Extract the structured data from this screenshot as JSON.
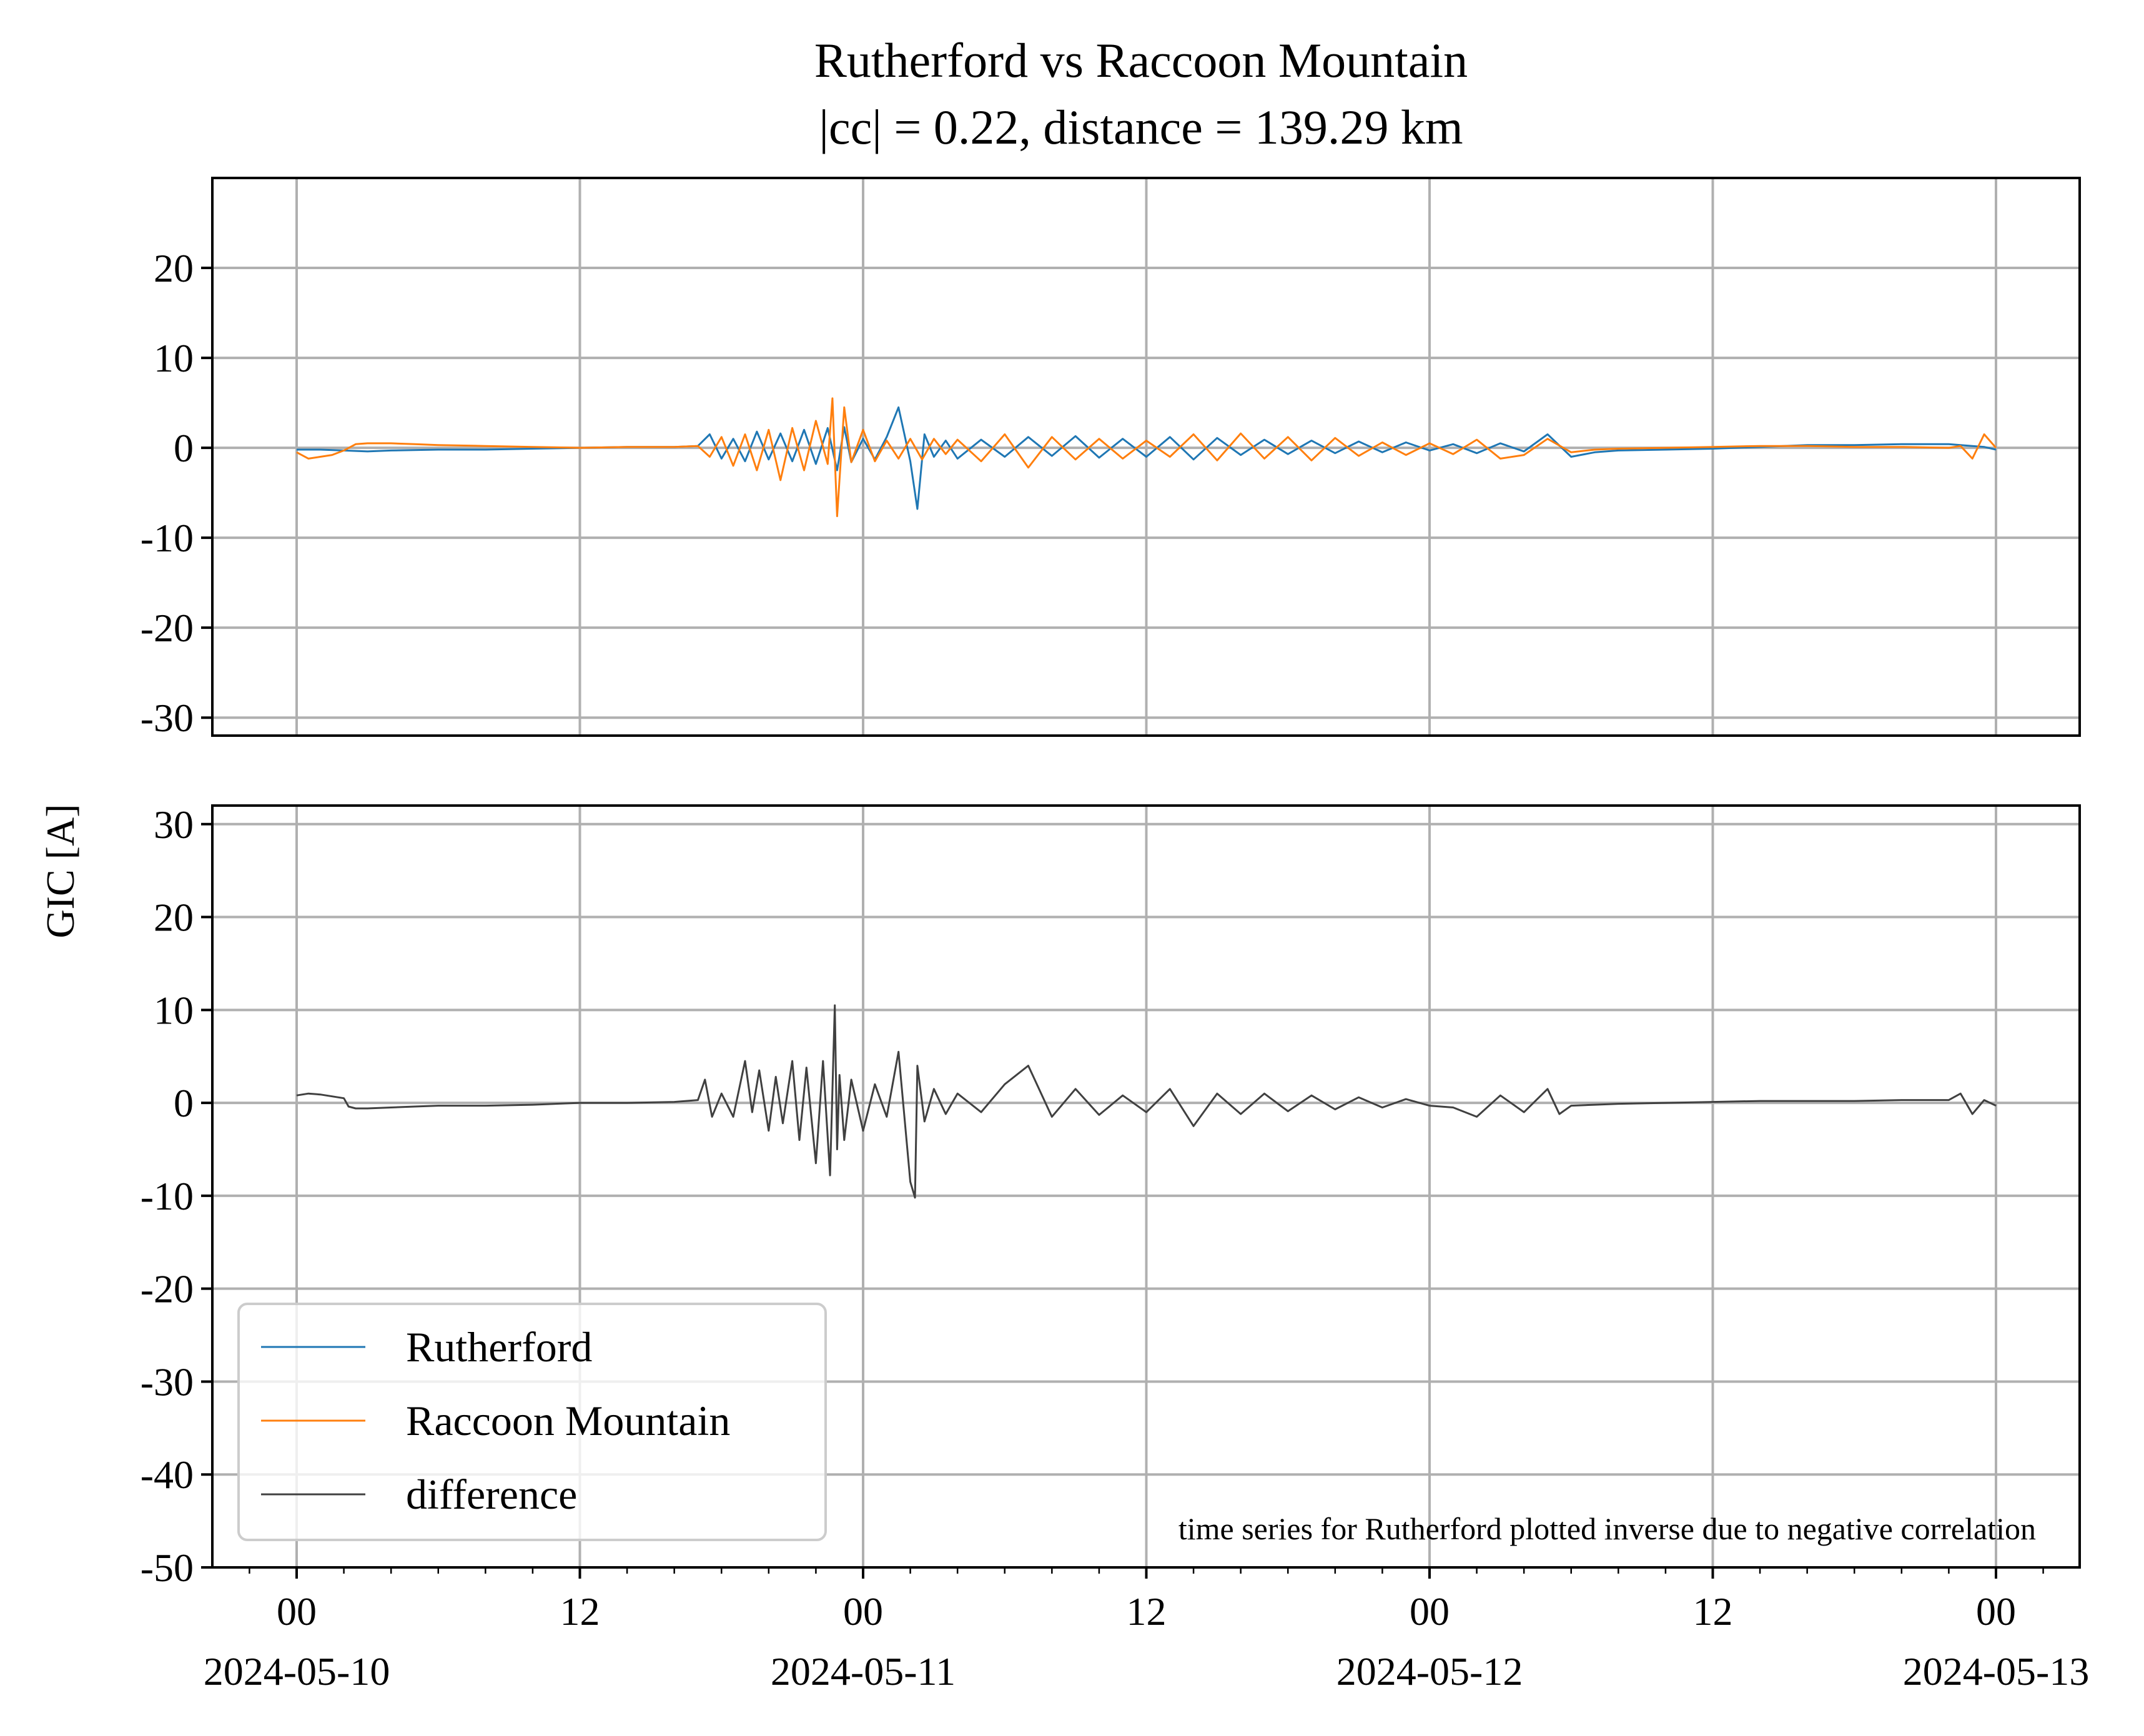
{
  "chart_data": {
    "type": "line",
    "title": "Rutherford vs Raccoon Mountain",
    "subtitle": "|cc| = 0.22, distance = 139.29 km",
    "ylabel": "GIC [A]",
    "annotation": "time series for Rutherford plotted inverse due to negative correlation",
    "colors": {
      "Rutherford": "#1f77b4",
      "Raccoon Mountain": "#ff7f0e",
      "difference": "#404040"
    },
    "legend": {
      "position": "lower-left",
      "entries": [
        "Rutherford",
        "Raccoon Mountain",
        "difference"
      ]
    },
    "grid": true,
    "x_ticks": [
      {
        "hours": 0,
        "label1": "00",
        "label2": "2024-05-10"
      },
      {
        "hours": 12,
        "label1": "12",
        "label2": ""
      },
      {
        "hours": 24,
        "label1": "00",
        "label2": "2024-05-11"
      },
      {
        "hours": 36,
        "label1": "12",
        "label2": ""
      },
      {
        "hours": 48,
        "label1": "00",
        "label2": "2024-05-12"
      },
      {
        "hours": 60,
        "label1": "12",
        "label2": ""
      },
      {
        "hours": 72,
        "label1": "00",
        "label2": "2024-05-13"
      }
    ],
    "panels": [
      {
        "name": "top",
        "ylim": [
          -32,
          30
        ],
        "yticks": [
          20,
          10,
          0,
          -10,
          -20,
          -30
        ],
        "series": [
          {
            "name": "Rutherford",
            "x_hours": [
              0,
              1,
              2,
              3,
              4,
              6,
              8,
              10,
              12,
              14,
              16,
              17,
              17.5,
              18,
              18.5,
              19,
              19.5,
              20,
              20.5,
              21,
              21.5,
              22,
              22.5,
              22.9,
              23.2,
              23.5,
              24,
              24.5,
              25,
              25.5,
              26,
              26.3,
              26.6,
              27,
              27.5,
              28,
              29,
              30,
              31,
              32,
              33,
              34,
              35,
              36,
              37,
              38,
              39,
              40,
              41,
              42,
              43,
              44,
              45,
              46,
              47,
              48,
              49,
              50,
              51,
              52,
              53,
              54,
              55,
              56,
              58,
              60,
              62,
              64,
              66,
              68,
              70,
              71,
              71.5,
              72
            ],
            "values": [
              -0.2,
              -0.2,
              -0.3,
              -0.4,
              -0.3,
              -0.2,
              -0.2,
              -0.1,
              0,
              0.1,
              0.1,
              0.2,
              1.5,
              -1.2,
              1,
              -1.5,
              1.8,
              -1.3,
              1.6,
              -1.5,
              2,
              -1.8,
              2.2,
              -2.5,
              2.3,
              -1.6,
              1,
              -1.3,
              1.2,
              4.5,
              -1.5,
              -6.8,
              1.5,
              -1,
              0.8,
              -1.2,
              0.9,
              -1,
              1.2,
              -0.9,
              1.3,
              -1.1,
              1,
              -1,
              1.2,
              -1.3,
              1.1,
              -0.8,
              0.9,
              -0.7,
              0.8,
              -0.6,
              0.7,
              -0.5,
              0.6,
              -0.3,
              0.4,
              -0.6,
              0.5,
              -0.4,
              1.5,
              -1,
              -0.5,
              -0.3,
              -0.2,
              -0.1,
              0.1,
              0.3,
              0.3,
              0.4,
              0.4,
              0.2,
              0.1,
              -0.2
            ]
          },
          {
            "name": "Raccoon Mountain",
            "x_hours": [
              0,
              0.5,
              1,
              1.5,
              2,
              2.5,
              3,
              4,
              5,
              6,
              8,
              10,
              12,
              14,
              16,
              17,
              17.5,
              18,
              18.5,
              19,
              19.5,
              20,
              20.5,
              21,
              21.5,
              22,
              22.5,
              22.7,
              22.9,
              23.2,
              23.5,
              24,
              24.5,
              25,
              25.5,
              26,
              26.5,
              27,
              27.5,
              28,
              29,
              30,
              31,
              32,
              33,
              34,
              35,
              36,
              37,
              38,
              39,
              40,
              41,
              42,
              43,
              44,
              45,
              46,
              47,
              48,
              49,
              50,
              51,
              52,
              53,
              54,
              55,
              56,
              58,
              60,
              62,
              64,
              66,
              68,
              70,
              70.5,
              71,
              71.5,
              72
            ],
            "values": [
              -0.5,
              -1.2,
              -1.0,
              -0.8,
              -0.3,
              0.4,
              0.5,
              0.5,
              0.4,
              0.3,
              0.2,
              0.1,
              0,
              0.1,
              0.1,
              0.2,
              -1,
              1.2,
              -2,
              1.5,
              -2.5,
              2,
              -3.6,
              2.2,
              -2.5,
              3,
              -1.8,
              5.5,
              -7.6,
              4.5,
              -1.6,
              2,
              -1.5,
              0.8,
              -1.2,
              1,
              -1.3,
              1,
              -0.7,
              0.9,
              -1.5,
              1.5,
              -2.2,
              1.2,
              -1.3,
              1,
              -1.2,
              0.8,
              -1,
              1.5,
              -1.4,
              1.6,
              -1.2,
              1.2,
              -1.4,
              1.1,
              -0.9,
              0.6,
              -0.8,
              0.5,
              -0.7,
              0.9,
              -1.2,
              -0.8,
              1,
              -0.5,
              -0.2,
              -0.1,
              0,
              0.1,
              0.2,
              0.2,
              0.1,
              0.1,
              0,
              0.2,
              -1.2,
              1.5,
              0
            ]
          }
        ]
      },
      {
        "name": "bottom",
        "ylim": [
          -50,
          32
        ],
        "yticks": [
          30,
          20,
          10,
          0,
          -10,
          -20,
          -30,
          -40,
          -50
        ],
        "series": [
          {
            "name": "difference",
            "x_hours": [
              0,
              0.5,
              1,
              1.5,
              2,
              2.2,
              2.5,
              3,
              4,
              5,
              6,
              8,
              10,
              12,
              14,
              16,
              17,
              17.3,
              17.6,
              18,
              18.5,
              19,
              19.3,
              19.6,
              20,
              20.3,
              20.6,
              21,
              21.3,
              21.6,
              22,
              22.3,
              22.6,
              22.8,
              22.9,
              23,
              23.2,
              23.5,
              24,
              24.5,
              25,
              25.5,
              26,
              26.2,
              26.3,
              26.6,
              27,
              27.5,
              28,
              29,
              30,
              31,
              32,
              33,
              34,
              35,
              36,
              37,
              38,
              39,
              40,
              41,
              42,
              43,
              44,
              45,
              46,
              47,
              48,
              49,
              50,
              51,
              52,
              53,
              53.5,
              54,
              55,
              56,
              58,
              60,
              62,
              64,
              66,
              68,
              70,
              70.5,
              71,
              71.5,
              72
            ],
            "values": [
              0.8,
              1.0,
              0.9,
              0.7,
              0.5,
              -0.4,
              -0.6,
              -0.6,
              -0.5,
              -0.4,
              -0.3,
              -0.3,
              -0.2,
              0,
              0,
              0.1,
              0.3,
              2.5,
              -1.5,
              1,
              -1.5,
              4.5,
              -1,
              3.5,
              -3,
              2.8,
              -2.2,
              4.5,
              -4,
              3.8,
              -6.5,
              4.5,
              -7.8,
              10.5,
              -5,
              3,
              -4,
              2.5,
              -3,
              2,
              -1.5,
              5.5,
              -8.5,
              -10.2,
              4,
              -2,
              1.5,
              -1.2,
              1,
              -1,
              2,
              4,
              -1.5,
              1.5,
              -1.3,
              0.8,
              -1,
              1.5,
              -2.5,
              1,
              -1.2,
              1,
              -0.9,
              0.8,
              -0.7,
              0.6,
              -0.5,
              0.4,
              -0.3,
              -0.5,
              -1.5,
              0.8,
              -1,
              1.5,
              -1.2,
              -0.3,
              -0.2,
              -0.1,
              0,
              0.1,
              0.2,
              0.2,
              0.2,
              0.3,
              0.3,
              1,
              -1.2,
              0.3,
              -0.3
            ]
          }
        ]
      }
    ]
  }
}
